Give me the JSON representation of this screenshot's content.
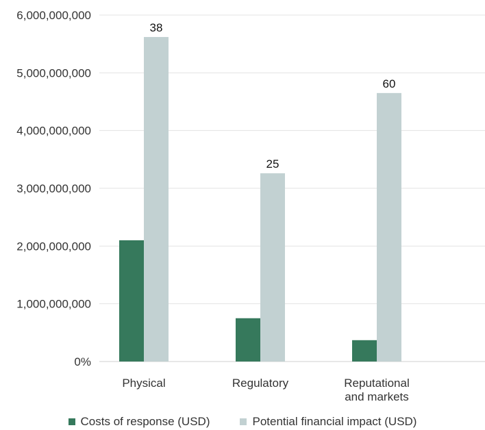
{
  "chart_data": {
    "type": "bar",
    "title": "",
    "xlabel": "",
    "ylabel": "",
    "categories": [
      "Physical",
      "Regulatory",
      "Reputational and markets"
    ],
    "category_lines": [
      [
        "Physical"
      ],
      [
        "Regulatory"
      ],
      [
        "Reputational",
        "and markets"
      ]
    ],
    "series": [
      {
        "name": "Costs of response (USD)",
        "color": "#36795c",
        "values": [
          2100000000,
          750000000,
          370000000
        ]
      },
      {
        "name": "Potential financial impact (USD)",
        "color": "#c2d1d2",
        "values": [
          5620000000,
          3260000000,
          4650000000
        ]
      }
    ],
    "data_labels": [
      {
        "series": 1,
        "category": 0,
        "text": "38"
      },
      {
        "series": 1,
        "category": 1,
        "text": "25"
      },
      {
        "series": 1,
        "category": 2,
        "text": "60"
      }
    ],
    "ylim": [
      0,
      6000000000
    ],
    "yticks": [
      0,
      1000000000,
      2000000000,
      3000000000,
      4000000000,
      5000000000,
      6000000000
    ],
    "ytick_labels": [
      "0%",
      "1,000,000,000",
      "2,000,000,000",
      "3,000,000,000",
      "4,000,000,000",
      "5,000,000,000",
      "6,000,000,000"
    ],
    "grid": true,
    "legend_position": "bottom"
  }
}
